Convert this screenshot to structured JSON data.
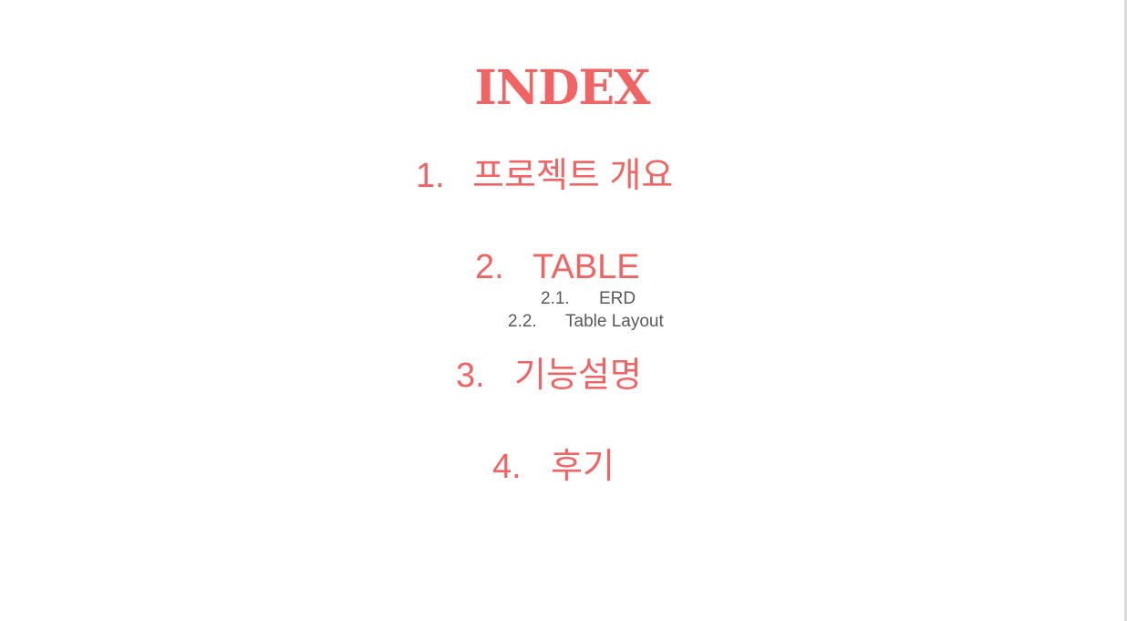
{
  "title": "INDEX",
  "items": [
    {
      "number": "1.",
      "label": "프로젝트 개요"
    },
    {
      "number": "2.",
      "label": "TABLE",
      "subitems": [
        {
          "number": "2.1.",
          "label": "ERD"
        },
        {
          "number": "2.2.",
          "label": "Table Layout"
        }
      ]
    },
    {
      "number": "3.",
      "label": "기능설명"
    },
    {
      "number": "4.",
      "label": "후기"
    }
  ],
  "colors": {
    "accent": "#f26363",
    "subtext": "#595959",
    "background": "#ffffff"
  }
}
